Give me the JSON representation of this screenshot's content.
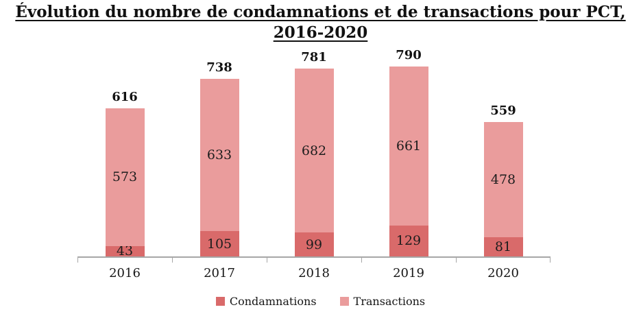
{
  "title": {
    "line1": "Évolution du nombre de condamnations et de transactions pour PCT,",
    "line2": "2016-2020"
  },
  "chart_data": {
    "type": "bar",
    "stacked": true,
    "title": "Évolution du nombre de condamnations et de transactions pour PCT, 2016-2020",
    "categories": [
      "2016",
      "2017",
      "2018",
      "2019",
      "2020"
    ],
    "series": [
      {
        "name": "Condamnations",
        "color": "#D96A6A",
        "values": [
          43,
          105,
          99,
          129,
          81
        ]
      },
      {
        "name": "Transactions",
        "color": "#EA9C9C",
        "values": [
          573,
          633,
          682,
          661,
          478
        ]
      }
    ],
    "totals": [
      616,
      738,
      781,
      790,
      559
    ],
    "xlabel": "",
    "ylabel": "",
    "ylim": [
      0,
      790
    ],
    "grid": false,
    "legend_position": "bottom",
    "axis_color": "#A6A6A6",
    "data_labels": "segment values centered inside segments, bold totals above bars"
  },
  "legend": {
    "items": [
      {
        "label": "Condamnations",
        "color": "#D96A6A"
      },
      {
        "label": "Transactions",
        "color": "#EA9C9C"
      }
    ]
  }
}
